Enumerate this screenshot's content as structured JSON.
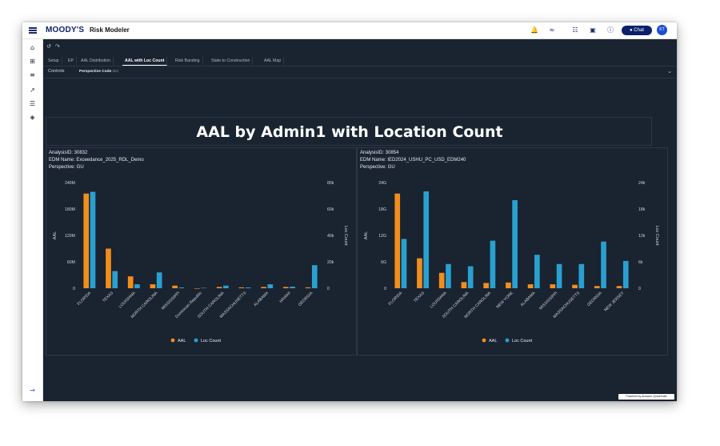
{
  "header": {
    "brand": "MOODY'S",
    "app_title": "Risk Modeler",
    "chat_label": "Chat",
    "avatar_initials": "KT",
    "icons": [
      "bell-icon",
      "chart-icon",
      "grid-apps-icon",
      "message-icon",
      "help-icon"
    ]
  },
  "leftnav": {
    "icons": [
      "home-icon",
      "add-box-icon",
      "list-icon",
      "trending-chart-icon",
      "sliders-icon",
      "layers-icon"
    ],
    "bottom_icon": "arrow-right-icon"
  },
  "toolbar": {
    "icons": [
      "undo-icon",
      "redo-icon"
    ]
  },
  "tabs": [
    "Setup",
    "EP",
    "AAL Distribution",
    "AAL with Loc Count",
    "Risk Banding",
    "State to Construction",
    "AAL Map"
  ],
  "active_tab": 3,
  "controls": {
    "label": "Controls",
    "perspective_label": "Perspective Code",
    "perspective_value": "GU"
  },
  "page_title": "AAL by Admin1 with Location Count",
  "colors": {
    "aal": "#f28e1b",
    "loc": "#2aa0d0",
    "background": "#1a2330"
  },
  "left_panel": {
    "analysis": "AnalysisID: 30832",
    "edm": "EDM Name: Exceedance_2025_RDL_Demo",
    "perspective": "Perspective: GU"
  },
  "right_panel": {
    "analysis": "AnalysisID: 30854",
    "edm": "EDM Name: IED2024_USHU_PC_USD_EDM240",
    "perspective": "Perspective: GU"
  },
  "chart_data": [
    {
      "type": "bar",
      "categories": [
        "FLORIDA",
        "TEXAS",
        "LOUISIANA",
        "NORTH CAROLINA",
        "MISSISSIPPI",
        "Dominican Republic",
        "SOUTH CAROLINA",
        "MASSACHUSETTS",
        "ALABAMA",
        "HAWAII",
        "GEORGIA"
      ],
      "series": [
        {
          "name": "AAL",
          "axis": "left",
          "values": [
            215,
            90,
            27,
            9,
            6,
            0,
            3,
            2,
            3,
            3,
            2
          ]
        },
        {
          "name": "Loc Count",
          "axis": "right",
          "values": [
            73,
            13,
            3,
            12,
            0.6,
            0.3,
            2,
            0.6,
            3,
            1.2,
            17.5
          ]
        }
      ],
      "ylabel": "AAL",
      "ylabel_right": "Loc Count",
      "ylim": [
        0,
        240
      ],
      "ylim_right": [
        0,
        80
      ],
      "yticks": [
        "0",
        "60M",
        "120M",
        "180M",
        "240M"
      ],
      "yticks_right": [
        "0",
        "20k",
        "40k",
        "60k",
        "80k"
      ],
      "legend": "bottom-center"
    },
    {
      "type": "bar",
      "categories": [
        "FLORIDA",
        "TEXAS",
        "LOUISIANA",
        "SOUTH CAROLINA",
        "NORTH CAROLINA",
        "NEW YORK",
        "ALABAMA",
        "MISSISSIPPI",
        "MASSACHUSETTS",
        "GEORGIA",
        "NEW JERSEY"
      ],
      "series": [
        {
          "name": "AAL",
          "axis": "left",
          "values": [
            21.5,
            6.8,
            3.5,
            1.4,
            1.2,
            1.3,
            0.9,
            0.9,
            0.8,
            0.5,
            0.5
          ]
        },
        {
          "name": "Loc Count",
          "axis": "right",
          "values": [
            11.2,
            22,
            5.5,
            5,
            10.8,
            20,
            7.6,
            5.5,
            5.5,
            10.6,
            6.2
          ]
        }
      ],
      "ylabel": "AAL",
      "ylabel_right": "Loc Count",
      "ylim": [
        0,
        24
      ],
      "ylim_right": [
        0,
        24
      ],
      "yticks": [
        "0",
        "6G",
        "12G",
        "18G",
        "24G"
      ],
      "yticks_right": [
        "0",
        "6k",
        "12k",
        "18k",
        "24k"
      ],
      "legend": "bottom-center"
    }
  ],
  "legend": {
    "aal": "AAL",
    "loc": "Loc Count"
  },
  "footer": {
    "powered": "Powered by Amazon QuickSuite"
  }
}
